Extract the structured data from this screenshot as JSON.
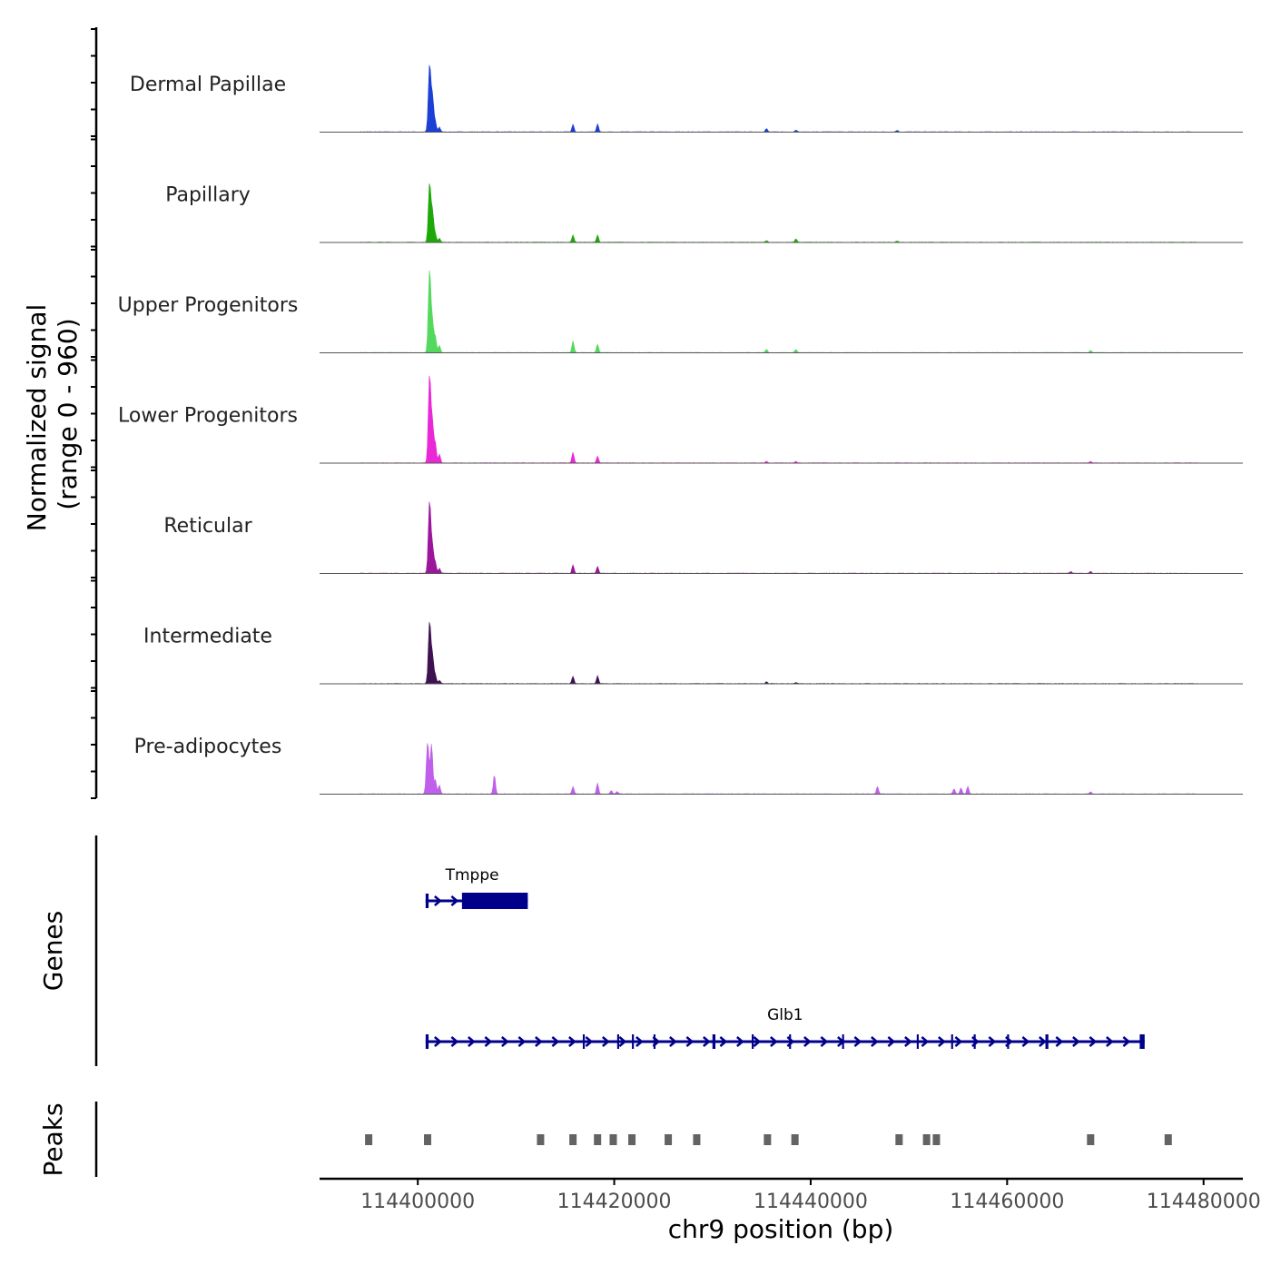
{
  "chart_data": [
    {
      "type": "area",
      "panel": "coverage",
      "ylabel_line1": "Normalized signal",
      "ylabel_line2": "(range 0 - 960)",
      "ylim": [
        0,
        960
      ],
      "xlim": [
        114390000,
        114484000
      ],
      "tracks": [
        {
          "name": "Dermal Papillae",
          "color": "#1c3fd6",
          "peaks": [
            [
              114401200,
              800
            ],
            [
              114401500,
              420
            ],
            [
              114401800,
              110
            ],
            [
              114402200,
              60
            ],
            [
              114415800,
              90
            ],
            [
              114418300,
              95
            ],
            [
              114435500,
              40
            ],
            [
              114438500,
              25
            ],
            [
              114448800,
              20
            ]
          ]
        },
        {
          "name": "Papillary",
          "color": "#1fa80a",
          "peaks": [
            [
              114401200,
              700
            ],
            [
              114401500,
              360
            ],
            [
              114401800,
              90
            ],
            [
              114402200,
              50
            ],
            [
              114415800,
              90
            ],
            [
              114418300,
              85
            ],
            [
              114435500,
              20
            ],
            [
              114438500,
              40
            ],
            [
              114448800,
              15
            ]
          ]
        },
        {
          "name": "Upper Progenitors",
          "color": "#55d85e",
          "peaks": [
            [
              114401200,
              990
            ],
            [
              114401500,
              360
            ],
            [
              114401800,
              180
            ],
            [
              114402200,
              90
            ],
            [
              114415800,
              140
            ],
            [
              114418300,
              100
            ],
            [
              114435500,
              40
            ],
            [
              114438500,
              40
            ],
            [
              114468500,
              25
            ]
          ]
        },
        {
          "name": "Lower Progenitors",
          "color": "#e928d6",
          "peaks": [
            [
              114401200,
              1050
            ],
            [
              114401500,
              470
            ],
            [
              114401800,
              220
            ],
            [
              114402200,
              110
            ],
            [
              114415800,
              130
            ],
            [
              114418300,
              80
            ],
            [
              114435500,
              20
            ],
            [
              114438500,
              20
            ],
            [
              114468500,
              20
            ]
          ]
        },
        {
          "name": "Reticular",
          "color": "#9c169c",
          "peaks": [
            [
              114401200,
              860
            ],
            [
              114401500,
              320
            ],
            [
              114401800,
              120
            ],
            [
              114402200,
              60
            ],
            [
              114415800,
              100
            ],
            [
              114418300,
              80
            ],
            [
              114468500,
              20
            ],
            [
              114466500,
              20
            ]
          ]
        },
        {
          "name": "Intermediate",
          "color": "#3e1251",
          "peaks": [
            [
              114401200,
              740
            ],
            [
              114401500,
              330
            ],
            [
              114401800,
              90
            ],
            [
              114402200,
              40
            ],
            [
              114415800,
              90
            ],
            [
              114418300,
              95
            ],
            [
              114435500,
              20
            ],
            [
              114438500,
              15
            ]
          ]
        },
        {
          "name": "Pre-adipocytes",
          "color": "#bf5fea",
          "peaks": [
            [
              114401000,
              630
            ],
            [
              114401400,
              600
            ],
            [
              114401800,
              170
            ],
            [
              114402200,
              110
            ],
            [
              114407800,
              230
            ],
            [
              114415800,
              90
            ],
            [
              114418300,
              130
            ],
            [
              114419700,
              40
            ],
            [
              114420300,
              30
            ],
            [
              114446800,
              90
            ],
            [
              114454600,
              60
            ],
            [
              114455300,
              75
            ],
            [
              114456000,
              90
            ],
            [
              114468500,
              25
            ]
          ]
        }
      ]
    },
    {
      "type": "gene-track",
      "panel": "genes",
      "ylabel": "Genes",
      "genes": [
        {
          "name": "Tmppe",
          "start": 114400800,
          "end": 114411200,
          "strand": "+",
          "exons": [
            [
              114400800,
              114401100
            ],
            [
              114404500,
              114411200
            ]
          ]
        },
        {
          "name": "Glb1",
          "start": 114400800,
          "end": 114474000,
          "strand": "+",
          "exons": [
            [
              114400800,
              114401100
            ],
            [
              114416800,
              114417000
            ],
            [
              114420300,
              114420500
            ],
            [
              114421800,
              114422000
            ],
            [
              114424000,
              114424200
            ],
            [
              114430000,
              114430300
            ],
            [
              114434000,
              114434200
            ],
            [
              114437800,
              114438000
            ],
            [
              114443200,
              114443400
            ],
            [
              114450800,
              114451000
            ],
            [
              114454300,
              114454500
            ],
            [
              114456600,
              114456800
            ],
            [
              114460000,
              114460200
            ],
            [
              114463900,
              114464200
            ],
            [
              114473500,
              114474000
            ]
          ]
        }
      ]
    },
    {
      "type": "peak-track",
      "panel": "peaks",
      "ylabel": "Peaks",
      "peaks": [
        114395000,
        114401000,
        114412500,
        114415800,
        114418300,
        114419900,
        114421800,
        114425500,
        114428400,
        114435600,
        114438400,
        114449000,
        114451800,
        114452800,
        114468500,
        114476400
      ],
      "xlabel": "chr9 position (bp)",
      "xticks": [
        114400000,
        114420000,
        114440000,
        114460000,
        114480000
      ],
      "xtick_labels": [
        "114400000",
        "114420000",
        "114440000",
        "114460000",
        "114480000"
      ]
    }
  ]
}
